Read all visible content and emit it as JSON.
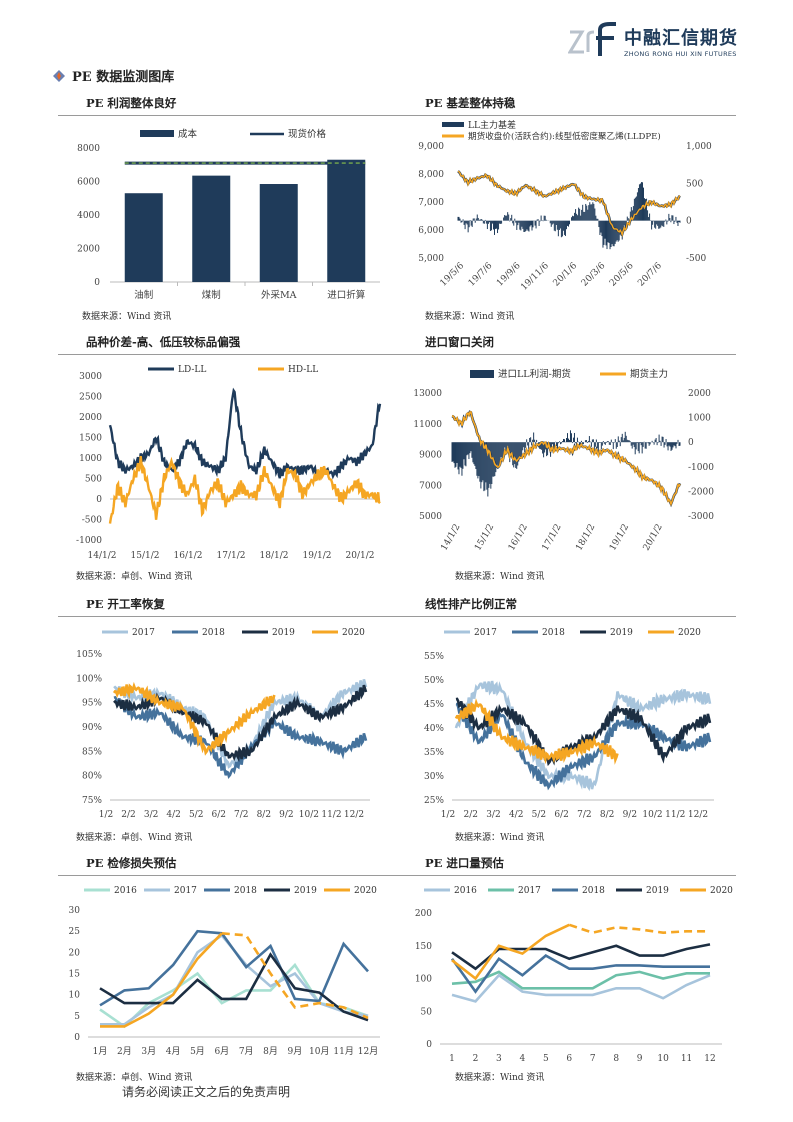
{
  "header": {
    "logo_cn": "中融汇信期货",
    "logo_en": "ZHONG RONG HUI XIN FUTURES",
    "section_title": "PE 数据监测图库"
  },
  "panels": [
    {
      "title": "PE 利润整体良好",
      "source": "数据来源：Wind 资讯"
    },
    {
      "title": "PE 基差整体持稳",
      "source": "数据来源：Wind 资讯"
    },
    {
      "title": "品种价差-高、低压较标品偏强",
      "source": "数据来源：卓创、Wind 资讯"
    },
    {
      "title": "进口窗口关闭",
      "source": "数据来源：Wind 资讯"
    },
    {
      "title": "PE 开工率恢复",
      "source": "数据来源：卓创、Wind 资讯"
    },
    {
      "title": "线性排产比例正常",
      "source": "数据来源：Wind 资讯"
    },
    {
      "title": "PE 检修损失预估",
      "source": "数据来源：卓创、Wind 资讯"
    },
    {
      "title": "PE 进口量预估",
      "source": "数据来源：Wind 资讯"
    }
  ],
  "footer": {
    "disclaimer": "请务必阅读正文之后的免责声明"
  },
  "colors": {
    "navy": "#1f3b5a",
    "orange": "#f5a623",
    "lightblue": "#a7c4dc",
    "midblue": "#45729c",
    "darknavy": "#1c2e42",
    "mint": "#a8e0d2",
    "teal": "#6cc0a8"
  },
  "chart_data": [
    {
      "type": "bar",
      "legend": [
        "成本",
        "现货价格"
      ],
      "categories": [
        "油制",
        "煤制",
        "外采MA",
        "进口折算"
      ],
      "series": [
        {
          "name": "成本",
          "values": [
            5300,
            6350,
            5850,
            7300
          ]
        },
        {
          "name": "现货价格",
          "values": [
            7100,
            7100,
            7100,
            7100
          ]
        }
      ],
      "yticks": [
        "0",
        "2000",
        "4000",
        "6000",
        "8000"
      ],
      "ylim": [
        0,
        8000
      ]
    },
    {
      "type": "line",
      "legend": [
        "LL主力基差",
        "期货收盘价(活跃合约):线型低密度聚乙烯(LLDPE)"
      ],
      "xticks": [
        "19/5/6",
        "19/7/6",
        "19/9/6",
        "19/11/6",
        "20/1/6",
        "20/3/6",
        "20/5/6",
        "20/7/6"
      ],
      "yticks_left": [
        "5,000",
        "6,000",
        "7,000",
        "8,000",
        "9,000"
      ],
      "yticks_right": [
        "-500",
        "0",
        "500",
        "1,000"
      ],
      "ylim_left": [
        5000,
        9000
      ],
      "ylim_right": [
        -500,
        1000
      ],
      "series": [
        {
          "name": "期货收盘价(活跃合约):线型低密度聚乙烯(LLDPE)",
          "axis": "left",
          "values": [
            8100,
            7700,
            7850,
            7950,
            7600,
            7400,
            7300,
            7600,
            7400,
            7200,
            7350,
            7500,
            7650,
            7200,
            7100,
            7050,
            6100,
            5900,
            6400,
            6800,
            7000,
            6850,
            6900,
            7200
          ]
        },
        {
          "name": "LL主力基差",
          "axis": "right",
          "values": [
            50,
            -100,
            50,
            -50,
            -150,
            100,
            -50,
            -150,
            -50,
            50,
            -100,
            -200,
            100,
            150,
            250,
            -300,
            -350,
            -200,
            150,
            550,
            -50,
            -100,
            50,
            -50
          ]
        }
      ]
    },
    {
      "type": "line",
      "legend": [
        "LD-LL",
        "HD-LL"
      ],
      "xticks": [
        "14/1/2",
        "15/1/2",
        "16/1/2",
        "17/1/2",
        "18/1/2",
        "19/1/2",
        "20/1/2"
      ],
      "yticks": [
        "-1000",
        "-500",
        "0",
        "500",
        "1000",
        "1500",
        "2000",
        "2500",
        "3000"
      ],
      "ylim": [
        -1000,
        3000
      ],
      "series": [
        {
          "name": "LD-LL",
          "values": [
            1800,
            900,
            700,
            800,
            1000,
            1100,
            1500,
            900,
            700,
            900,
            1400,
            1300,
            900,
            800,
            700,
            1000,
            2700,
            1600,
            800,
            700,
            1200,
            900,
            600,
            800,
            700,
            700,
            800,
            600,
            700,
            600,
            800,
            1000,
            900,
            1100,
            1300,
            2400
          ]
        },
        {
          "name": "HD-LL",
          "values": [
            -600,
            300,
            -100,
            500,
            900,
            300,
            -400,
            500,
            900,
            400,
            100,
            500,
            -300,
            200,
            400,
            -100,
            100,
            300,
            100,
            100,
            700,
            300,
            -100,
            700,
            600,
            100,
            400,
            600,
            700,
            300,
            0,
            200,
            400,
            100,
            100,
            0
          ]
        }
      ]
    },
    {
      "type": "line",
      "legend": [
        "进口LL利润-期货",
        "期货主力"
      ],
      "xticks": [
        "14/1/2",
        "15/1/2",
        "16/1/2",
        "17/1/2",
        "18/1/2",
        "19/1/2",
        "20/1/2"
      ],
      "yticks_left": [
        "5000",
        "7000",
        "9000",
        "11000",
        "13000"
      ],
      "yticks_right": [
        "-3000",
        "-2000",
        "-1000",
        "0",
        "1000",
        "2000"
      ],
      "ylim_left": [
        5000,
        13000
      ],
      "ylim_right": [
        -3000,
        2000
      ],
      "series": [
        {
          "name": "期货主力",
          "axis": "left",
          "values": [
            11500,
            11000,
            11800,
            10000,
            9200,
            8100,
            9300,
            8600,
            9000,
            9500,
            9800,
            9300,
            9400,
            9200,
            9600,
            9400,
            9100,
            9300,
            8900,
            8600,
            8100,
            7500,
            7300,
            6800,
            5800,
            7200
          ]
        },
        {
          "name": "进口LL利润-期货",
          "axis": "right",
          "values": [
            -800,
            -1200,
            -400,
            -1600,
            -2000,
            -1000,
            -300,
            -1100,
            -200,
            200,
            -500,
            -300,
            0,
            300,
            -100,
            100,
            -200,
            0,
            -100,
            300,
            -300,
            -200,
            0,
            100,
            -300,
            0
          ]
        }
      ]
    },
    {
      "type": "line",
      "legend": [
        "2017",
        "2018",
        "2019",
        "2020"
      ],
      "xticks": [
        "1/2",
        "2/2",
        "3/2",
        "4/2",
        "5/2",
        "6/2",
        "7/2",
        "8/2",
        "9/2",
        "10/2",
        "11/2",
        "12/2"
      ],
      "yticks": [
        "75%",
        "80%",
        "85%",
        "90%",
        "95%",
        "100%",
        "105%"
      ],
      "ylim": [
        75,
        105
      ],
      "series": [
        {
          "name": "2017",
          "values": [
            98,
            96,
            97,
            94,
            92,
            82,
            86,
            95,
            96,
            92,
            97,
            99
          ]
        },
        {
          "name": "2018",
          "values": [
            96,
            92,
            93,
            88,
            87,
            80,
            86,
            91,
            88,
            87,
            85,
            88
          ]
        },
        {
          "name": "2019",
          "values": [
            95,
            94,
            96,
            93,
            91,
            84,
            85,
            92,
            95,
            92,
            94,
            98
          ]
        },
        {
          "name": "2020",
          "values": [
            97,
            98,
            95,
            94,
            85,
            89,
            93,
            96,
            null,
            null,
            null,
            null
          ]
        }
      ]
    },
    {
      "type": "line",
      "legend": [
        "2017",
        "2018",
        "2019",
        "2020"
      ],
      "xticks": [
        "1/2",
        "2/2",
        "3/2",
        "4/2",
        "5/2",
        "6/2",
        "7/2",
        "8/2",
        "9/2",
        "10/2",
        "11/2",
        "12/2"
      ],
      "yticks": [
        "25%",
        "30%",
        "35%",
        "40%",
        "45%",
        "50%",
        "55%"
      ],
      "ylim": [
        25,
        55
      ],
      "series": [
        {
          "name": "2017",
          "values": [
            40,
            49,
            48,
            37,
            30,
            30,
            28,
            47,
            44,
            46,
            47,
            46
          ]
        },
        {
          "name": "2018",
          "values": [
            45,
            37,
            43,
            33,
            28,
            32,
            34,
            41,
            41,
            38,
            36,
            38
          ]
        },
        {
          "name": "2019",
          "values": [
            46,
            40,
            44,
            41,
            33,
            36,
            38,
            44,
            42,
            34,
            40,
            42
          ]
        },
        {
          "name": "2020",
          "values": [
            42,
            45,
            38,
            36,
            34,
            35,
            37,
            34,
            null,
            null,
            null,
            null
          ]
        }
      ]
    },
    {
      "type": "line",
      "legend": [
        "2016",
        "2017",
        "2018",
        "2019",
        "2020"
      ],
      "xticks": [
        "1月",
        "2月",
        "3月",
        "4月",
        "5月",
        "6月",
        "7月",
        "8月",
        "9月",
        "10月",
        "11月",
        "12月"
      ],
      "yticks": [
        "0",
        "5",
        "10",
        "15",
        "20",
        "25",
        "30"
      ],
      "ylim": [
        0,
        30
      ],
      "series": [
        {
          "name": "2016",
          "values": [
            6.5,
            2.5,
            8,
            11,
            15,
            8,
            11,
            11,
            17,
            8,
            7,
            5
          ]
        },
        {
          "name": "2017",
          "values": [
            3,
            3,
            7,
            10,
            20,
            24,
            17,
            12,
            15,
            8,
            6,
            5
          ]
        },
        {
          "name": "2018",
          "values": [
            7.5,
            11,
            11.5,
            17,
            25,
            24.5,
            16.5,
            21.5,
            9,
            8.5,
            22,
            15.5
          ]
        },
        {
          "name": "2019",
          "values": [
            11.5,
            8,
            8,
            8,
            13.5,
            9,
            9,
            19.5,
            11.5,
            10.5,
            6,
            4
          ]
        },
        {
          "name": "2020",
          "values": [
            2.5,
            2.5,
            5.5,
            10,
            18.5,
            24.5,
            24,
            15,
            7,
            8,
            7,
            4.5
          ]
        }
      ]
    },
    {
      "type": "line",
      "legend": [
        "2016",
        "2017",
        "2018",
        "2019",
        "2020"
      ],
      "xticks": [
        "1",
        "2",
        "3",
        "4",
        "5",
        "6",
        "7",
        "8",
        "9",
        "10",
        "11",
        "12"
      ],
      "yticks": [
        "0",
        "50",
        "100",
        "150",
        "200"
      ],
      "ylim": [
        0,
        200
      ],
      "series": [
        {
          "name": "2016",
          "values": [
            75,
            65,
            105,
            80,
            75,
            75,
            75,
            85,
            85,
            70,
            90,
            105
          ]
        },
        {
          "name": "2017",
          "values": [
            92,
            95,
            110,
            85,
            85,
            85,
            85,
            105,
            110,
            100,
            108,
            108
          ]
        },
        {
          "name": "2018",
          "values": [
            130,
            80,
            130,
            105,
            135,
            115,
            115,
            120,
            120,
            118,
            118,
            118
          ]
        },
        {
          "name": "2019",
          "values": [
            140,
            115,
            145,
            145,
            145,
            130,
            140,
            150,
            135,
            135,
            145,
            152
          ]
        },
        {
          "name": "2020",
          "values": [
            128,
            100,
            150,
            138,
            165,
            182,
            170,
            178,
            175,
            170,
            172,
            172
          ]
        }
      ]
    }
  ]
}
